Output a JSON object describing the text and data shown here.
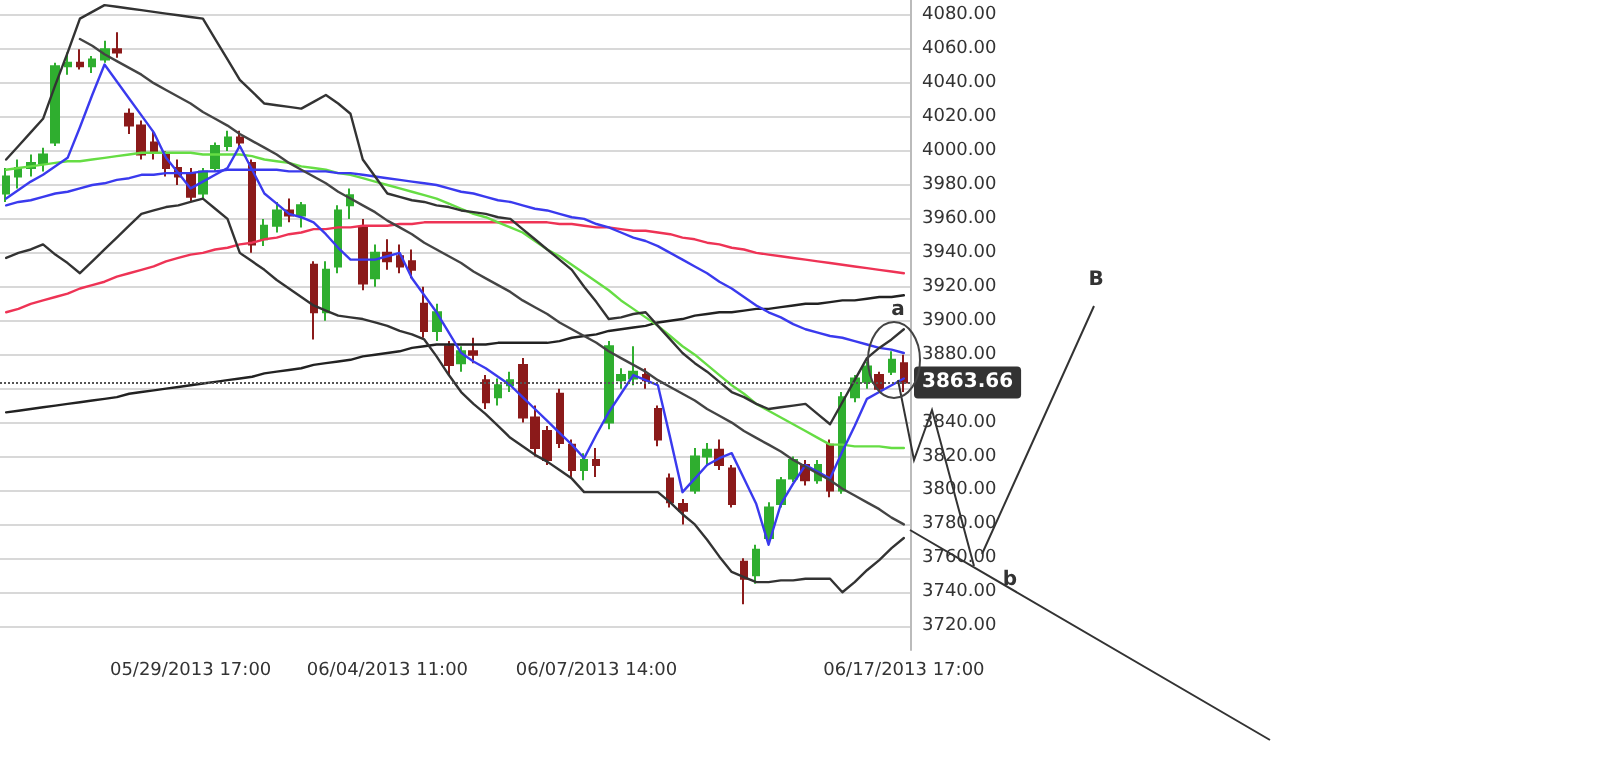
{
  "chart_data": {
    "type": "candlestick",
    "categories": [
      null,
      null,
      null,
      null,
      null,
      null,
      null,
      null,
      null,
      null,
      null,
      null,
      null,
      null,
      null,
      "05/29/2013 17:00",
      null,
      null,
      null,
      null,
      null,
      null,
      null,
      null,
      null,
      null,
      null,
      null,
      null,
      null,
      null,
      "06/04/2013 11:00",
      null,
      null,
      null,
      null,
      null,
      null,
      null,
      null,
      null,
      null,
      null,
      null,
      null,
      null,
      null,
      null,
      "06/07/2013 14:00",
      null,
      null,
      null,
      null,
      null,
      null,
      null,
      null,
      null,
      null,
      null,
      null,
      null,
      null,
      null,
      null,
      null,
      null,
      null,
      null,
      null,
      null,
      null,
      null,
      "06/17/2013 17:00"
    ],
    "ohlc": [
      [
        3975,
        3990,
        3970,
        3985
      ],
      [
        3985,
        3995,
        3978,
        3990
      ],
      [
        3990,
        3998,
        3985,
        3993
      ],
      [
        3993,
        4002,
        3988,
        3998
      ],
      [
        4005,
        4052,
        4003,
        4050
      ],
      [
        4050,
        4058,
        4045,
        4052
      ],
      [
        4052,
        4060,
        4048,
        4050
      ],
      [
        4050,
        4056,
        4046,
        4054
      ],
      [
        4054,
        4065,
        4052,
        4060
      ],
      [
        4060,
        4070,
        4055,
        4058
      ],
      [
        4022,
        4025,
        4010,
        4015
      ],
      [
        4015,
        4018,
        3995,
        3998
      ],
      [
        4005,
        4012,
        3995,
        4000
      ],
      [
        3998,
        4000,
        3985,
        3990
      ],
      [
        3990,
        3995,
        3980,
        3985
      ],
      [
        3987,
        3990,
        3970,
        3973
      ],
      [
        3975,
        3990,
        3972,
        3988
      ],
      [
        3990,
        4005,
        3988,
        4003
      ],
      [
        4003,
        4012,
        4000,
        4008
      ],
      [
        4008,
        4012,
        4002,
        4005
      ],
      [
        3993,
        3995,
        3940,
        3945
      ],
      [
        3948,
        3960,
        3944,
        3956
      ],
      [
        3956,
        3970,
        3952,
        3965
      ],
      [
        3965,
        3972,
        3958,
        3962
      ],
      [
        3962,
        3970,
        3955,
        3968
      ],
      [
        3933,
        3935,
        3889,
        3905
      ],
      [
        3905,
        3935,
        3900,
        3930
      ],
      [
        3932,
        3968,
        3928,
        3965
      ],
      [
        3968,
        3978,
        3960,
        3974
      ],
      [
        3955,
        3960,
        3918,
        3922
      ],
      [
        3925,
        3945,
        3920,
        3940
      ],
      [
        3940,
        3948,
        3930,
        3935
      ],
      [
        3938,
        3945,
        3928,
        3932
      ],
      [
        3935,
        3942,
        3925,
        3930
      ],
      [
        3910,
        3920,
        3890,
        3894
      ],
      [
        3894,
        3910,
        3888,
        3905
      ],
      [
        3885,
        3888,
        3868,
        3874
      ],
      [
        3875,
        3885,
        3870,
        3882
      ],
      [
        3882,
        3890,
        3875,
        3880
      ],
      [
        3865,
        3868,
        3848,
        3852
      ],
      [
        3855,
        3866,
        3850,
        3862
      ],
      [
        3862,
        3870,
        3858,
        3865
      ],
      [
        3874,
        3878,
        3840,
        3843
      ],
      [
        3843,
        3850,
        3820,
        3825
      ],
      [
        3835,
        3838,
        3815,
        3818
      ],
      [
        3857,
        3860,
        3825,
        3828
      ],
      [
        3827,
        3830,
        3808,
        3812
      ],
      [
        3812,
        3822,
        3806,
        3818
      ],
      [
        3818,
        3825,
        3808,
        3815
      ],
      [
        3840,
        3888,
        3836,
        3885
      ],
      [
        3865,
        3872,
        3860,
        3868
      ],
      [
        3866,
        3885,
        3862,
        3870
      ],
      [
        3868,
        3872,
        3860,
        3865
      ],
      [
        3848,
        3850,
        3826,
        3830
      ],
      [
        3807,
        3810,
        3790,
        3793
      ],
      [
        3792,
        3795,
        3780,
        3788
      ],
      [
        3800,
        3825,
        3798,
        3820
      ],
      [
        3820,
        3828,
        3815,
        3824
      ],
      [
        3824,
        3830,
        3812,
        3815
      ],
      [
        3813,
        3815,
        3790,
        3792
      ],
      [
        3758,
        3760,
        3733,
        3748
      ],
      [
        3750,
        3768,
        3745,
        3765
      ],
      [
        3772,
        3793,
        3770,
        3790
      ],
      [
        3792,
        3808,
        3790,
        3806
      ],
      [
        3807,
        3820,
        3805,
        3818
      ],
      [
        3815,
        3818,
        3803,
        3806
      ],
      [
        3806,
        3818,
        3804,
        3815
      ],
      [
        3827,
        3830,
        3796,
        3800
      ],
      [
        3800,
        3858,
        3798,
        3855
      ],
      [
        3855,
        3868,
        3852,
        3866
      ],
      [
        3864,
        3876,
        3860,
        3873
      ],
      [
        3868,
        3870,
        3858,
        3860
      ],
      [
        3870,
        3882,
        3868,
        3877
      ],
      [
        3875,
        3880,
        3858,
        3863.66
      ]
    ],
    "colors": [
      "#2fae2f",
      "#2fae2f",
      "#2fae2f",
      "#2fae2f",
      "#2fae2f",
      "#2fae2f",
      "#8b1a1a",
      "#2fae2f",
      "#2fae2f",
      "#8b1a1a",
      "#8b1a1a",
      "#8b1a1a",
      "#8b1a1a",
      "#8b1a1a",
      "#8b1a1a",
      "#8b1a1a",
      "#2fae2f",
      "#2fae2f",
      "#2fae2f",
      "#8b1a1a",
      "#8b1a1a",
      "#2fae2f",
      "#2fae2f",
      "#8b1a1a",
      "#2fae2f",
      "#8b1a1a",
      "#2fae2f",
      "#2fae2f",
      "#2fae2f",
      "#8b1a1a",
      "#2fae2f",
      "#8b1a1a",
      "#8b1a1a",
      "#8b1a1a",
      "#8b1a1a",
      "#2fae2f",
      "#8b1a1a",
      "#2fae2f",
      "#8b1a1a",
      "#8b1a1a",
      "#2fae2f",
      "#2fae2f",
      "#8b1a1a",
      "#8b1a1a",
      "#8b1a1a",
      "#8b1a1a",
      "#8b1a1a",
      "#2fae2f",
      "#8b1a1a",
      "#2fae2f",
      "#2fae2f",
      "#2fae2f",
      "#8b1a1a",
      "#8b1a1a",
      "#8b1a1a",
      "#8b1a1a",
      "#2fae2f",
      "#2fae2f",
      "#8b1a1a",
      "#8b1a1a",
      "#8b1a1a",
      "#2fae2f",
      "#2fae2f",
      "#2fae2f",
      "#2fae2f",
      "#8b1a1a",
      "#2fae2f",
      "#8b1a1a",
      "#2fae2f",
      "#2fae2f",
      "#2fae2f",
      "#8b1a1a",
      "#2fae2f",
      "#8b1a1a"
    ],
    "series": [
      {
        "type": "line",
        "color": "#ee3355",
        "values": [
          3905,
          3907,
          3910,
          3912,
          3914,
          3916,
          3919,
          3921,
          3923,
          3926,
          3928,
          3930,
          3932,
          3935,
          3937,
          3939,
          3940,
          3942,
          3943,
          3945,
          3946,
          3948,
          3949,
          3951,
          3952,
          3954,
          3954,
          3955,
          3955,
          3956,
          3956,
          3956,
          3957,
          3957,
          3958,
          3958,
          3958,
          3958,
          3958,
          3958,
          3958,
          3958,
          3958,
          3958,
          3958,
          3957,
          3957,
          3956,
          3955,
          3955,
          3954,
          3953,
          3953,
          3952,
          3951,
          3949,
          3948,
          3946,
          3945,
          3943,
          3942,
          3940,
          3939,
          3938,
          3937,
          3936,
          3935,
          3934,
          3933,
          3932,
          3931,
          3930,
          3929,
          3928
        ]
      },
      {
        "type": "line",
        "color": "#222222",
        "values": [
          3846,
          3847,
          3848,
          3849,
          3850,
          3851,
          3852,
          3853,
          3854,
          3855,
          3857,
          3858,
          3859,
          3860,
          3861,
          3862,
          3863,
          3864,
          3865,
          3866,
          3867,
          3869,
          3870,
          3871,
          3872,
          3874,
          3875,
          3876,
          3877,
          3879,
          3880,
          3881,
          3882,
          3884,
          3885,
          3886,
          3886,
          3886,
          3886,
          3886,
          3887,
          3887,
          3887,
          3887,
          3887,
          3888,
          3890,
          3891,
          3892,
          3894,
          3895,
          3896,
          3897,
          3899,
          3900,
          3901,
          3903,
          3904,
          3905,
          3905,
          3906,
          3907,
          3907,
          3908,
          3909,
          3910,
          3910,
          3911,
          3912,
          3912,
          3913,
          3914,
          3914,
          3915
        ]
      },
      {
        "type": "line",
        "color": "#66dd44",
        "values": [
          3989,
          3990,
          3991,
          3992,
          3993,
          3994,
          3994,
          3995,
          3996,
          3997,
          3998,
          3999,
          3999,
          3999,
          3999,
          3999,
          3998,
          3998,
          3998,
          3998,
          3997,
          3995,
          3994,
          3993,
          3991,
          3990,
          3989,
          3987,
          3986,
          3984,
          3982,
          3980,
          3978,
          3976,
          3974,
          3972,
          3969,
          3966,
          3963,
          3961,
          3958,
          3955,
          3952,
          3947,
          3942,
          3938,
          3933,
          3928,
          3923,
          3918,
          3912,
          3907,
          3902,
          3897,
          3891,
          3885,
          3880,
          3874,
          3868,
          3862,
          3857,
          3851,
          3847,
          3843,
          3839,
          3835,
          3831,
          3827,
          3827,
          3826,
          3826,
          3826,
          3825,
          3825
        ]
      },
      {
        "type": "line",
        "color": "#3a3aee",
        "values": [
          3968,
          3970,
          3971,
          3973,
          3975,
          3976,
          3978,
          3980,
          3981,
          3983,
          3984,
          3986,
          3986,
          3987,
          3987,
          3987,
          3988,
          3988,
          3989,
          3989,
          3989,
          3989,
          3989,
          3988,
          3988,
          3988,
          3988,
          3987,
          3987,
          3986,
          3985,
          3984,
          3983,
          3982,
          3981,
          3980,
          3978,
          3976,
          3975,
          3973,
          3971,
          3970,
          3968,
          3966,
          3965,
          3963,
          3961,
          3960,
          3957,
          3955,
          3952,
          3949,
          3947,
          3944,
          3940,
          3936,
          3932,
          3928,
          3923,
          3919,
          3914,
          3909,
          3905,
          3902,
          3898,
          3895,
          3893,
          3891,
          3890,
          3888,
          3886,
          3884,
          3883,
          3881
        ]
      },
      {
        "type": "line",
        "color": "#3a3aee",
        "values": [
          3972,
          3977,
          3982,
          3986,
          3991,
          3996,
          4014,
          4033,
          4051,
          4041,
          4031,
          4021,
          4011,
          3996,
          3987,
          3978,
          3982,
          3986,
          3990,
          4003,
          3989,
          3975,
          3969,
          3963,
          3961,
          3958,
          3951,
          3943,
          3936,
          3936,
          3936,
          3938,
          3940,
          3925,
          3915,
          3905,
          3893,
          3881,
          3876,
          3872,
          3867,
          3862,
          3855,
          3848,
          3841,
          3834,
          3827,
          3819,
          3833,
          3846,
          3857,
          3868,
          3865,
          3862,
          3831,
          3799,
          3807,
          3815,
          3819,
          3822,
          3807,
          3792,
          3768,
          3792,
          3804,
          3815,
          3811,
          3807,
          3823,
          3838,
          3854,
          3858,
          3862,
          3866
        ]
      },
      {
        "type": "line",
        "color": "#333333",
        "values": [
          3995,
          4003,
          4011,
          4019,
          4039,
          4058,
          4078,
          4082,
          4086,
          4085,
          4084,
          4083,
          4082,
          4081,
          4080,
          4079,
          4078,
          4066,
          4054,
          4042,
          4035,
          4028,
          4027,
          4026,
          4025,
          4029,
          4033,
          4028,
          4022,
          3995,
          3985,
          3975,
          3973,
          3971,
          3970,
          3968,
          3967,
          3965,
          3964,
          3963,
          3961,
          3960,
          3954,
          3948,
          3942,
          3936,
          3930,
          3920,
          3911,
          3901,
          3902,
          3904,
          3905,
          3897,
          3889,
          3881,
          3875,
          3870,
          3864,
          3858,
          3855,
          3851,
          3848,
          3849,
          3850,
          3851,
          3845,
          3839,
          3852,
          3865,
          3878,
          3884,
          3889,
          3895
        ]
      },
      {
        "type": "line",
        "color": "#333333",
        "values": [
          3937,
          3940,
          3942,
          3945,
          3939,
          3934,
          3928,
          3935,
          3942,
          3949,
          3956,
          3963,
          3965,
          3967,
          3968,
          3970,
          3972,
          3966,
          3960,
          3940,
          3935,
          3930,
          3924,
          3919,
          3914,
          3909,
          3906,
          3903,
          3902,
          3901,
          3899,
          3897,
          3894,
          3892,
          3889,
          3879,
          3868,
          3858,
          3851,
          3845,
          3838,
          3831,
          3826,
          3821,
          3817,
          3812,
          3807,
          3799,
          3799,
          3799,
          3799,
          3799,
          3799,
          3799,
          3793,
          3786,
          3780,
          3771,
          3761,
          3752,
          3749,
          3746,
          3746,
          3747,
          3747,
          3748,
          3748,
          3748,
          3740,
          3746,
          3753,
          3759,
          3766,
          3772
        ]
      },
      {
        "type": "line",
        "color": "#444444",
        "values": [
          null,
          null,
          null,
          null,
          null,
          null,
          4066,
          4062,
          4057,
          4053,
          4049,
          4045,
          4040,
          4036,
          4032,
          4028,
          4023,
          4019,
          4015,
          4010,
          4006,
          4002,
          3998,
          3993,
          3989,
          3985,
          3981,
          3976,
          3972,
          3968,
          3964,
          3959,
          3955,
          3951,
          3946,
          3942,
          3938,
          3934,
          3929,
          3925,
          3921,
          3917,
          3912,
          3908,
          3904,
          3899,
          3895,
          3891,
          3887,
          3882,
          3878,
          3874,
          3870,
          3865,
          3861,
          3857,
          3853,
          3848,
          3844,
          3840,
          3835,
          3831,
          3827,
          3823,
          3818,
          3814,
          3810,
          3806,
          3801,
          3797,
          3793,
          3789,
          3784,
          3780
        ]
      }
    ],
    "ylim": [
      3706,
      4089
    ],
    "yticks": [
      {
        "value": 3720,
        "label": "3720.00"
      },
      {
        "value": 3740,
        "label": "3740.00"
      },
      {
        "value": 3760,
        "label": "3760.00"
      },
      {
        "value": 3780,
        "label": "3780.00"
      },
      {
        "value": 3800,
        "label": "3800.00"
      },
      {
        "value": 3820,
        "label": "3820.00"
      },
      {
        "value": 3840,
        "label": "3840.00"
      },
      {
        "value": 3860,
        "label": null
      },
      {
        "value": 3880,
        "label": "3880.00"
      },
      {
        "value": 3900,
        "label": "3900.00"
      },
      {
        "value": 3920,
        "label": "3920.00"
      },
      {
        "value": 3940,
        "label": "3940.00"
      },
      {
        "value": 3960,
        "label": "3960.00"
      },
      {
        "value": 3980,
        "label": "3980.00"
      },
      {
        "value": 4000,
        "label": "4000.00"
      },
      {
        "value": 4020,
        "label": "4020.00"
      },
      {
        "value": 4040,
        "label": "4040.00"
      },
      {
        "value": 4060,
        "label": "4060.00"
      },
      {
        "value": 4080,
        "label": "4080.00"
      }
    ],
    "grid": "y",
    "marker": "none",
    "ref_lines": [
      {
        "axis": "y",
        "value": 3863.66,
        "label": "3863.66",
        "color": "#555555",
        "line_style": "dotted"
      }
    ],
    "annotations": [
      "a",
      "b",
      "B"
    ]
  }
}
